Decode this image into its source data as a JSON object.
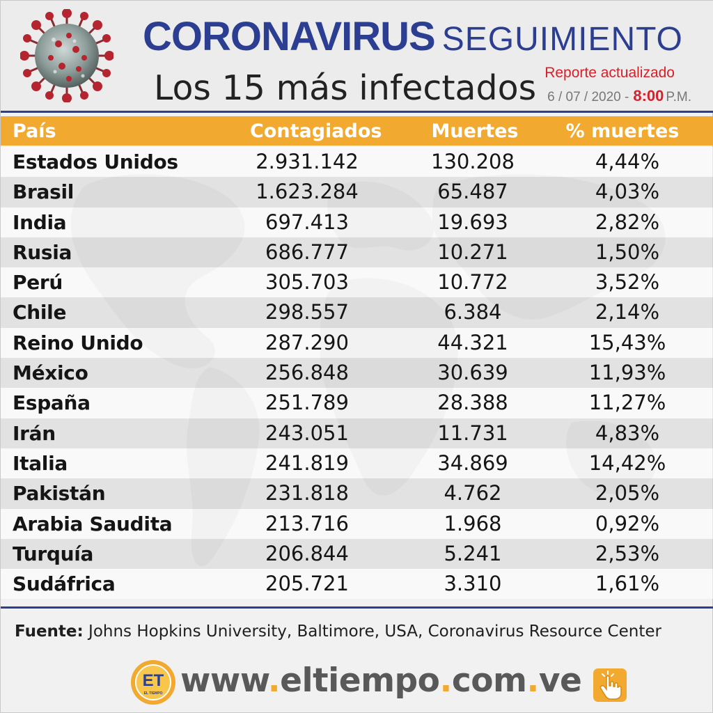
{
  "header": {
    "title_word1": "Coronavirus",
    "title_word2": "Seguimiento",
    "subtitle": "Los 15 más infectados",
    "report_label": "Reporte actualizado",
    "report_date": "6 / 07 / 2020 -",
    "report_time": "8:00",
    "report_ampm": "P.M.",
    "icon": "coronavirus-icon"
  },
  "table": {
    "columns": [
      "País",
      "Contagiados",
      "Muertes",
      "% muertes"
    ],
    "rows": [
      {
        "country": "Estados Unidos",
        "cases": "2.931.142",
        "deaths": "130.208",
        "pct": "4,44%"
      },
      {
        "country": "Brasil",
        "cases": "1.623.284",
        "deaths": "65.487",
        "pct": "4,03%"
      },
      {
        "country": "India",
        "cases": "697.413",
        "deaths": "19.693",
        "pct": "2,82%"
      },
      {
        "country": "Rusia",
        "cases": "686.777",
        "deaths": "10.271",
        "pct": "1,50%"
      },
      {
        "country": "Perú",
        "cases": "305.703",
        "deaths": "10.772",
        "pct": "3,52%"
      },
      {
        "country": "Chile",
        "cases": "298.557",
        "deaths": "6.384",
        "pct": "2,14%"
      },
      {
        "country": "Reino Unido",
        "cases": "287.290",
        "deaths": "44.321",
        "pct": "15,43%"
      },
      {
        "country": "México",
        "cases": "256.848",
        "deaths": "30.639",
        "pct": "11,93%"
      },
      {
        "country": "España",
        "cases": "251.789",
        "deaths": "28.388",
        "pct": "11,27%"
      },
      {
        "country": "Irán",
        "cases": "243.051",
        "deaths": "11.731",
        "pct": "4,83%"
      },
      {
        "country": "Italia",
        "cases": "241.819",
        "deaths": "34.869",
        "pct": "14,42%"
      },
      {
        "country": "Pakistán",
        "cases": "231.818",
        "deaths": "4.762",
        "pct": "2,05%"
      },
      {
        "country": "Arabia Saudita",
        "cases": "213.716",
        "deaths": "1.968",
        "pct": "0,92%"
      },
      {
        "country": "Turquía",
        "cases": "206.844",
        "deaths": "5.241",
        "pct": "2,53%"
      },
      {
        "country": "Sudáfrica",
        "cases": "205.721",
        "deaths": "3.310",
        "pct": "1,61%"
      }
    ]
  },
  "footer": {
    "source_label": "Fuente:",
    "source_text": "Johns Hopkins University, Baltimore, USA, Coronavirus Resource Center",
    "logo_letters": "ET",
    "logo_small": "EL TIEMPO",
    "site_www": "www",
    "site_dot": ".",
    "site_name": "eltiempo",
    "site_com": "com",
    "site_ve": "ve",
    "click_icon": "click-hand-icon"
  },
  "colors": {
    "brand_blue": "#2b3e91",
    "header_orange": "#f2a930",
    "accent_red": "#d6202a"
  }
}
